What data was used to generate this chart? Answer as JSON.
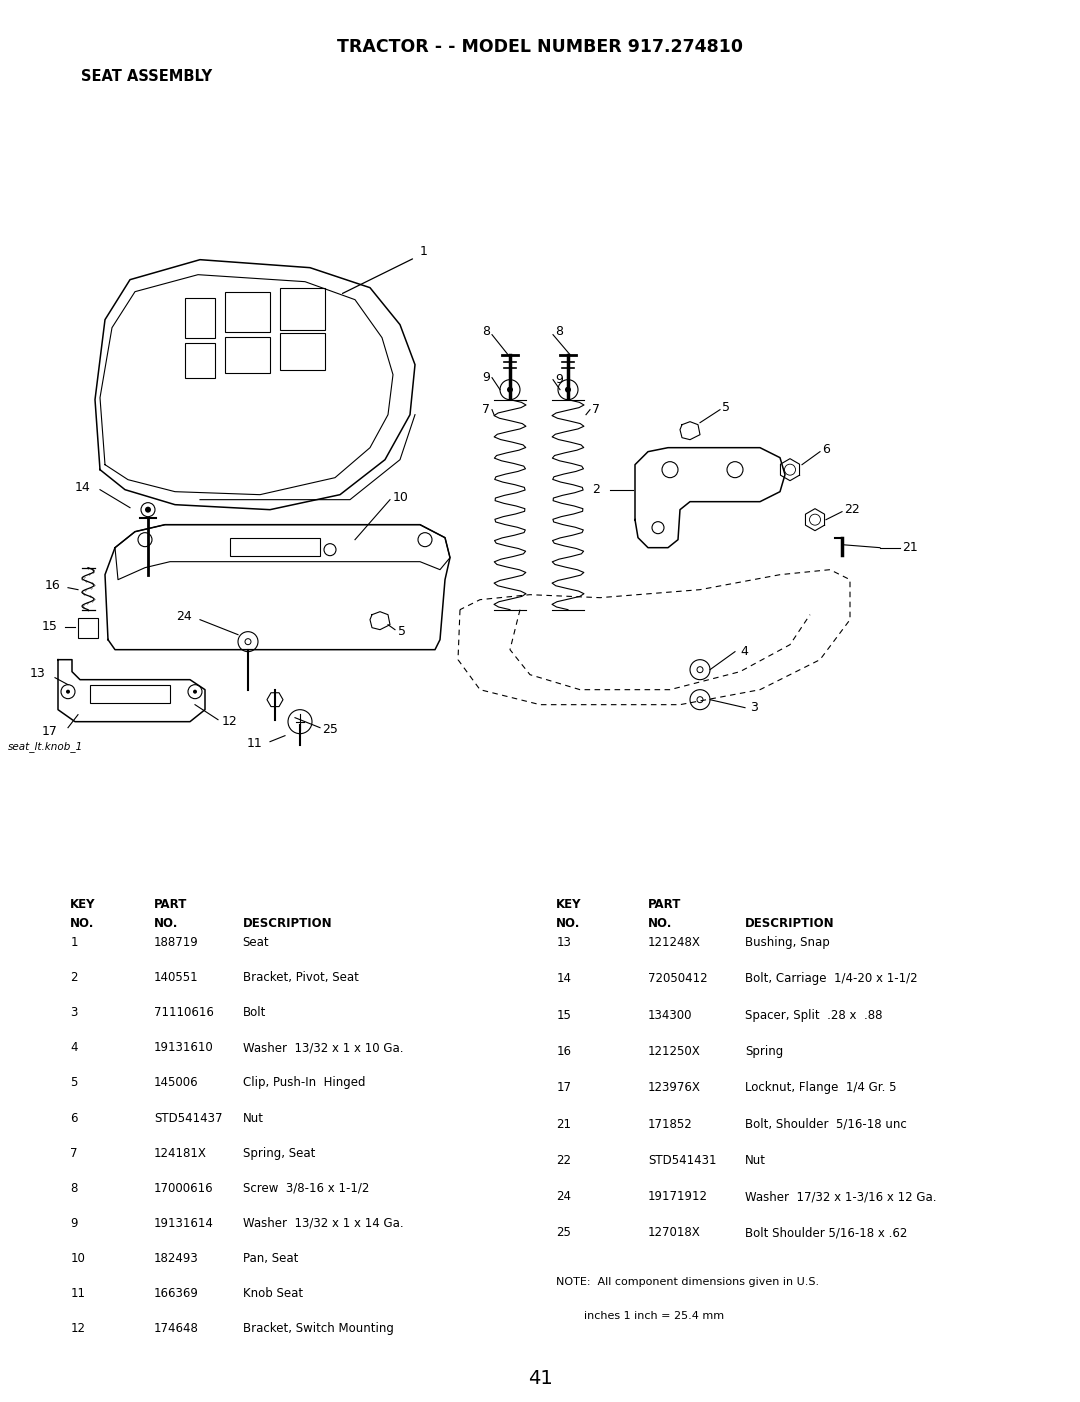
{
  "title": "TRACTOR - - MODEL NUMBER 917.274810",
  "subtitle": "SEAT ASSEMBLY",
  "page_number": "41",
  "image_label": "seat_lt.knob_1",
  "bg_color": "#ffffff",
  "text_color": "#000000",
  "left_table_rows": [
    [
      "1",
      "188719",
      "Seat"
    ],
    [
      "2",
      "140551",
      "Bracket, Pivot, Seat"
    ],
    [
      "3",
      "71110616",
      "Bolt"
    ],
    [
      "4",
      "19131610",
      "Washer  13/32 x 1 x 10 Ga."
    ],
    [
      "5",
      "145006",
      "Clip, Push-In  Hinged"
    ],
    [
      "6",
      "STD541437",
      "Nut"
    ],
    [
      "7",
      "124181X",
      "Spring, Seat"
    ],
    [
      "8",
      "17000616",
      "Screw  3/8-16 x 1-1/2"
    ],
    [
      "9",
      "19131614",
      "Washer  13/32 x 1 x 14 Ga."
    ],
    [
      "10",
      "182493",
      "Pan, Seat"
    ],
    [
      "11",
      "166369",
      "Knob Seat"
    ],
    [
      "12",
      "174648",
      "Bracket, Switch Mounting"
    ]
  ],
  "right_table_rows": [
    [
      "13",
      "121248X",
      "Bushing, Snap"
    ],
    [
      "14",
      "72050412",
      "Bolt, Carriage  1/4-20 x 1-1/2"
    ],
    [
      "15",
      "134300",
      "Spacer, Split  .28 x  .88"
    ],
    [
      "16",
      "121250X",
      "Spring"
    ],
    [
      "17",
      "123976X",
      "Locknut, Flange  1/4 Gr. 5"
    ],
    [
      "21",
      "171852",
      "Bolt, Shoulder  5/16-18 unc"
    ],
    [
      "22",
      "STD541431",
      "Nut"
    ],
    [
      "24",
      "19171912",
      "Washer  17/32 x 1-3/16 x 12 Ga."
    ],
    [
      "25",
      "127018X",
      "Bolt Shoulder 5/16-18 x .62"
    ]
  ],
  "note_line1": "NOTE:  All component dimensions given in U.S.",
  "note_line2": "        inches 1 inch = 25.4 mm"
}
